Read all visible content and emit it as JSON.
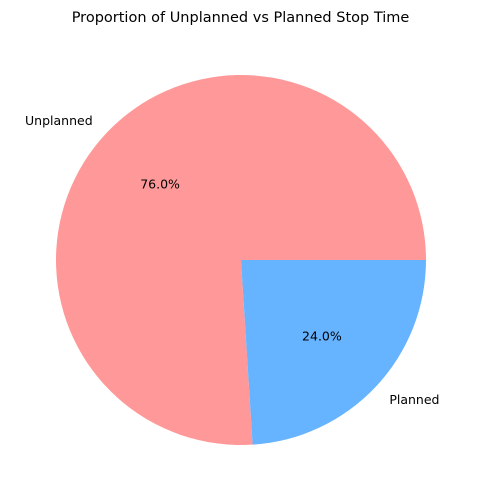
{
  "chart_data": {
    "type": "pie",
    "title": "Proportion of Unplanned vs Planned Stop Time",
    "categories": [
      "Unplanned",
      "Planned"
    ],
    "values": [
      76.0,
      24.0
    ],
    "value_labels": [
      "76.0%",
      "24.0%"
    ],
    "colors": [
      "#ff9999",
      "#66b3ff"
    ],
    "start_angle_deg": 0,
    "direction": "counterclockwise",
    "legend": "none"
  }
}
